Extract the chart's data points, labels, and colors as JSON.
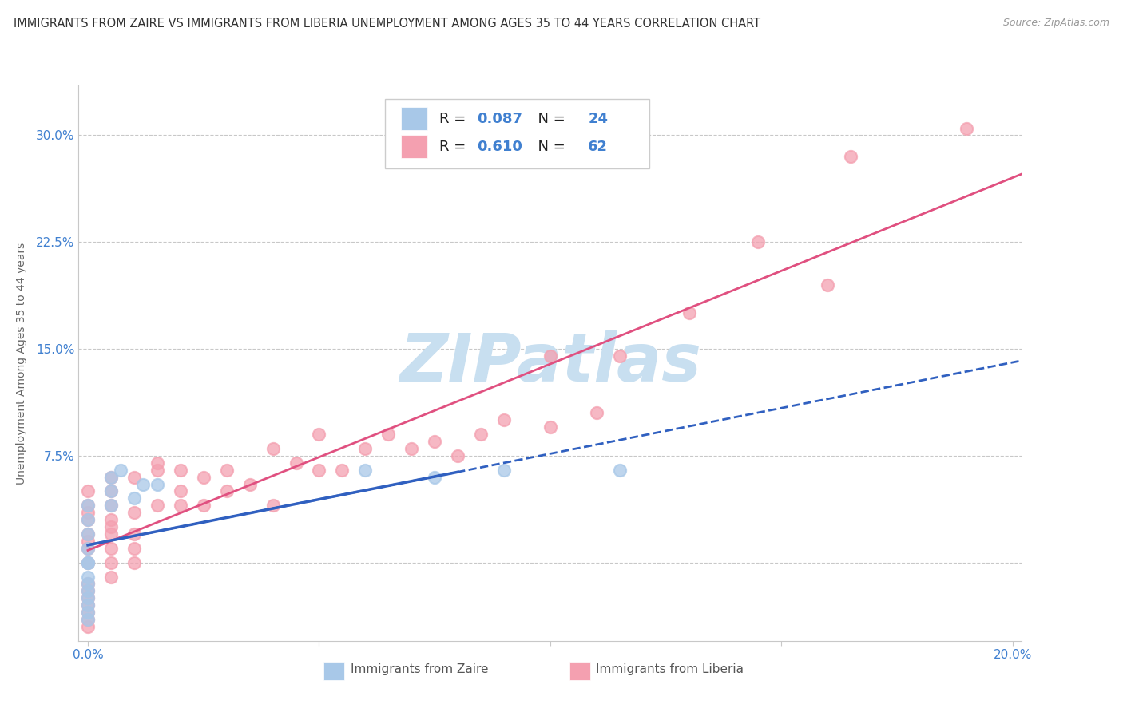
{
  "title": "IMMIGRANTS FROM ZAIRE VS IMMIGRANTS FROM LIBERIA UNEMPLOYMENT AMONG AGES 35 TO 44 YEARS CORRELATION CHART",
  "source": "Source: ZipAtlas.com",
  "ylabel": "Unemployment Among Ages 35 to 44 years",
  "xlim": [
    -0.002,
    0.202
  ],
  "ylim": [
    -0.055,
    0.335
  ],
  "yticks": [
    0.0,
    0.075,
    0.15,
    0.225,
    0.3
  ],
  "ytick_labels": [
    "",
    "7.5%",
    "15.0%",
    "22.5%",
    "30.0%"
  ],
  "zaire_color": "#A8C8E8",
  "liberia_color": "#F4A0B0",
  "zaire_line_color": "#3060C0",
  "liberia_line_color": "#E05080",
  "R_zaire": 0.087,
  "N_zaire": 24,
  "R_liberia": 0.61,
  "N_liberia": 62,
  "zaire_scatter_x": [
    0.0,
    0.0,
    0.0,
    0.0,
    0.0,
    0.0,
    0.0,
    0.0,
    0.0,
    0.0,
    0.0,
    0.0,
    0.0,
    0.005,
    0.005,
    0.005,
    0.007,
    0.01,
    0.012,
    0.015,
    0.06,
    0.075,
    0.09,
    0.115
  ],
  "zaire_scatter_y": [
    0.0,
    0.0,
    -0.01,
    -0.015,
    -0.02,
    -0.025,
    -0.03,
    -0.035,
    -0.04,
    0.01,
    0.02,
    0.03,
    0.04,
    0.04,
    0.05,
    0.06,
    0.065,
    0.045,
    0.055,
    0.055,
    0.065,
    0.06,
    0.065,
    0.065
  ],
  "liberia_scatter_x": [
    0.0,
    0.0,
    0.0,
    0.0,
    0.0,
    0.0,
    0.0,
    0.0,
    0.0,
    0.0,
    0.0,
    0.0,
    0.0,
    0.0,
    0.005,
    0.005,
    0.005,
    0.005,
    0.005,
    0.005,
    0.005,
    0.005,
    0.01,
    0.01,
    0.01,
    0.01,
    0.015,
    0.015,
    0.02,
    0.02,
    0.025,
    0.025,
    0.03,
    0.03,
    0.035,
    0.04,
    0.04,
    0.045,
    0.05,
    0.05,
    0.055,
    0.06,
    0.065,
    0.07,
    0.075,
    0.08,
    0.085,
    0.09,
    0.1,
    0.1,
    0.11,
    0.115,
    0.13,
    0.145,
    0.16,
    0.165,
    0.19,
    0.0,
    0.005,
    0.01,
    0.015,
    0.02
  ],
  "liberia_scatter_y": [
    -0.015,
    -0.02,
    -0.025,
    -0.03,
    -0.035,
    -0.04,
    -0.045,
    0.0,
    0.01,
    0.015,
    0.02,
    0.03,
    0.035,
    0.04,
    -0.01,
    0.0,
    0.01,
    0.02,
    0.03,
    0.04,
    0.05,
    0.06,
    0.0,
    0.01,
    0.02,
    0.06,
    0.04,
    0.065,
    0.04,
    0.065,
    0.04,
    0.06,
    0.05,
    0.065,
    0.055,
    0.04,
    0.08,
    0.07,
    0.065,
    0.09,
    0.065,
    0.08,
    0.09,
    0.08,
    0.085,
    0.075,
    0.09,
    0.1,
    0.095,
    0.145,
    0.105,
    0.145,
    0.175,
    0.225,
    0.195,
    0.285,
    0.305,
    0.05,
    0.025,
    0.035,
    0.07,
    0.05
  ],
  "background_color": "#FFFFFF",
  "grid_color": "#C8C8C8",
  "watermark": "ZIPatlas",
  "watermark_color": "#C8DFF0",
  "title_fontsize": 10.5,
  "axis_label_fontsize": 10,
  "tick_fontsize": 11,
  "legend_fontsize": 12,
  "tick_color": "#4080D0",
  "text_color": "#333333"
}
